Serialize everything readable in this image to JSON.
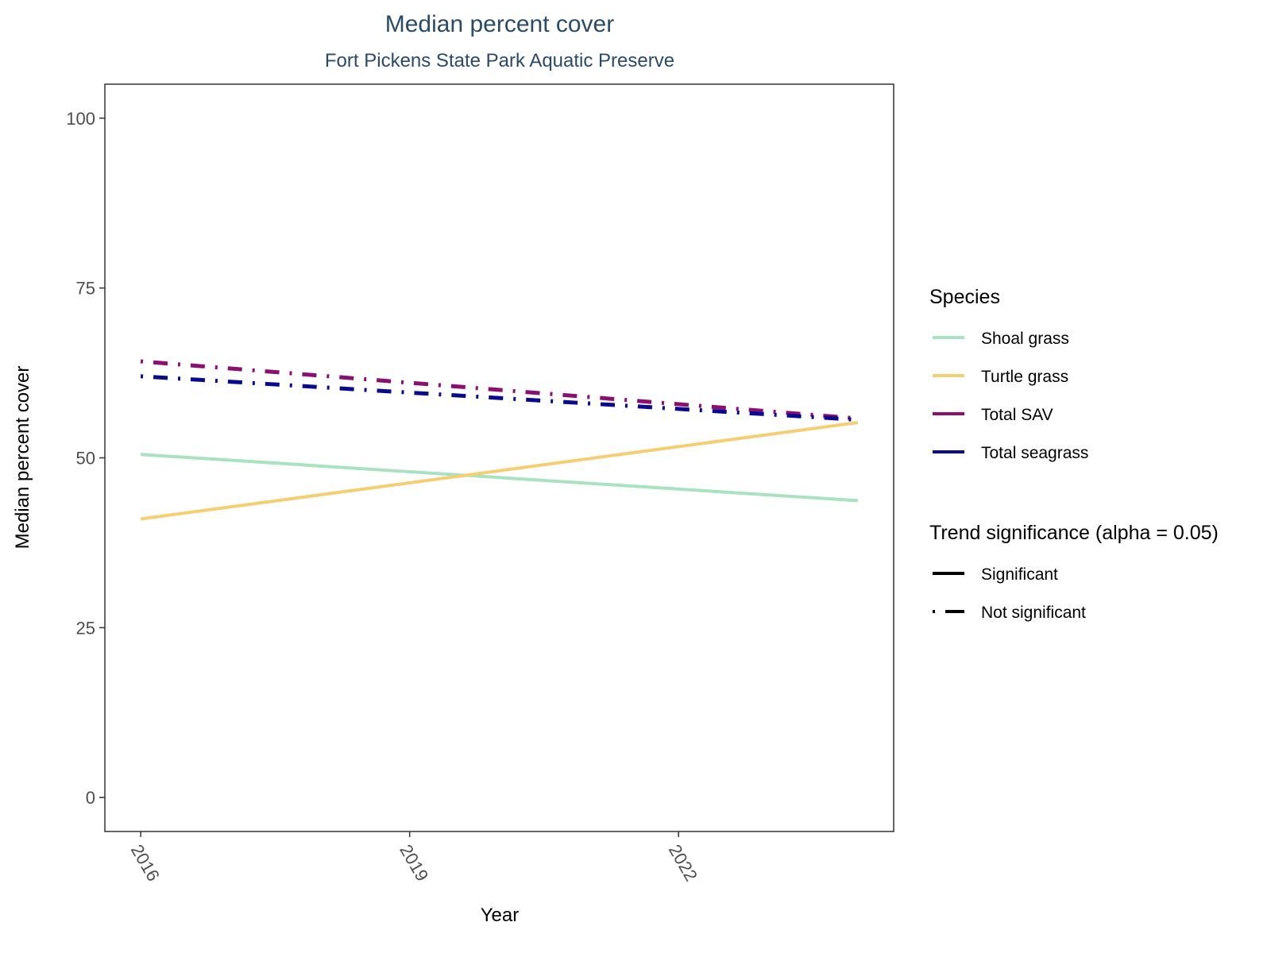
{
  "chart_data": {
    "type": "line",
    "title": "Median percent cover",
    "subtitle": "Fort Pickens State Park Aquatic Preserve",
    "xlabel": "Year",
    "ylabel": "Median percent cover",
    "xlim": [
      2015.6,
      2024.4
    ],
    "ylim": [
      -5,
      105
    ],
    "x_ticks": [
      2016,
      2019,
      2022
    ],
    "y_ticks": [
      0,
      25,
      50,
      75,
      100
    ],
    "grid": false,
    "legend_position": "right",
    "series": [
      {
        "name": "Shoal grass",
        "x": [
          2016,
          2024
        ],
        "y": [
          50.5,
          43.7
        ],
        "color": "#a8e2c0",
        "significance": "Significant"
      },
      {
        "name": "Turtle grass",
        "x": [
          2016,
          2024
        ],
        "y": [
          41.0,
          55.2
        ],
        "color": "#f7cd72",
        "significance": "Significant"
      },
      {
        "name": "Total SAV",
        "x": [
          2016,
          2024
        ],
        "y": [
          64.2,
          55.8
        ],
        "color": "#8b0f70",
        "significance": "Not significant"
      },
      {
        "name": "Total seagrass",
        "x": [
          2016,
          2024
        ],
        "y": [
          62.0,
          55.6
        ],
        "color": "#0a0a8f",
        "significance": "Not significant"
      }
    ],
    "legends": {
      "species_title": "Species",
      "species": [
        {
          "label": "Shoal grass",
          "color": "#a8e2c0"
        },
        {
          "label": "Turtle grass",
          "color": "#f7cd72"
        },
        {
          "label": "Total SAV",
          "color": "#8b0f70"
        },
        {
          "label": "Total seagrass",
          "color": "#0a0a8f"
        }
      ],
      "significance_title": "Trend significance (alpha = 0.05)",
      "significance": [
        {
          "label": "Significant",
          "linetype": "solid"
        },
        {
          "label": "Not significant",
          "linetype": "dotdash"
        }
      ]
    }
  }
}
